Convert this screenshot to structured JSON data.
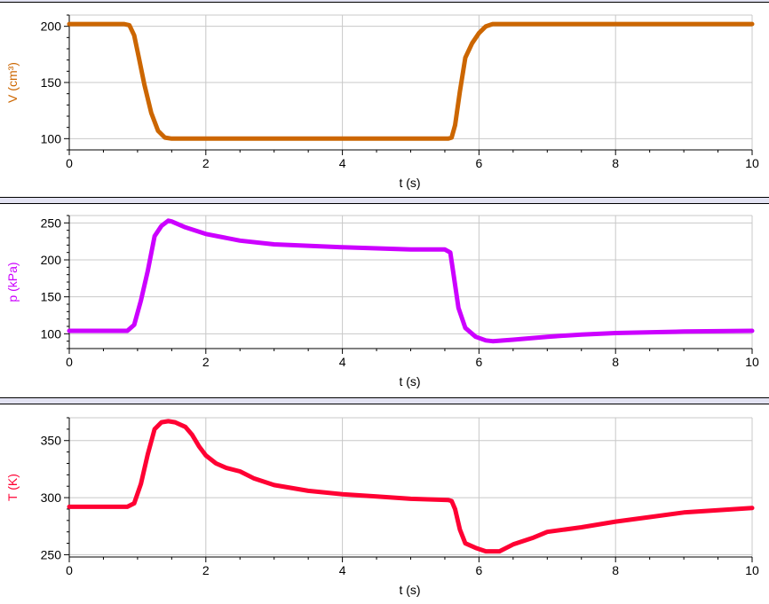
{
  "colors": {
    "grid": "#c8c8c8",
    "axis": "#000000",
    "tick_text": "#000000",
    "separator": "#e2e2f2"
  },
  "chart_data": [
    {
      "type": "line",
      "title": "",
      "xlabel": "t (s)",
      "ylabel": "V (cm³)",
      "color": "#cc6600",
      "xlim": [
        0,
        10
      ],
      "ylim": [
        90,
        210
      ],
      "xticks": [
        0,
        2,
        4,
        6,
        8,
        10
      ],
      "yticks": [
        100,
        150,
        200
      ],
      "grid": true,
      "series": [
        {
          "x": [
            0,
            0.8,
            0.88,
            0.95,
            1.02,
            1.1,
            1.2,
            1.3,
            1.4,
            1.5,
            2,
            3,
            4,
            5,
            5.55,
            5.6,
            5.65,
            5.72,
            5.8,
            5.9,
            6.0,
            6.1,
            6.2,
            6.3,
            6.5,
            7,
            8,
            9,
            10
          ],
          "y": [
            202,
            202,
            201,
            192,
            172,
            148,
            123,
            107,
            101,
            100,
            100,
            100,
            100,
            100,
            100,
            101,
            112,
            142,
            172,
            185,
            194,
            200,
            202,
            202,
            202,
            202,
            202,
            202,
            202
          ]
        }
      ]
    },
    {
      "type": "line",
      "title": "",
      "xlabel": "t (s)",
      "ylabel": "p (kPa)",
      "color": "#cc00ff",
      "xlim": [
        0,
        10
      ],
      "ylim": [
        80,
        260
      ],
      "xticks": [
        0,
        2,
        4,
        6,
        8,
        10
      ],
      "yticks": [
        100,
        150,
        200,
        250
      ],
      "grid": true,
      "series": [
        {
          "x": [
            0,
            0.85,
            0.95,
            1.05,
            1.15,
            1.25,
            1.35,
            1.45,
            1.5,
            1.7,
            2.0,
            2.5,
            3,
            4,
            5,
            5.5,
            5.58,
            5.62,
            5.7,
            5.8,
            5.95,
            6.1,
            6.2,
            6.5,
            7,
            7.5,
            8,
            9,
            10
          ],
          "y": [
            104,
            104,
            112,
            145,
            185,
            232,
            246,
            253,
            252,
            244,
            235,
            226,
            221,
            217,
            214,
            214,
            210,
            185,
            135,
            108,
            96,
            91,
            90,
            92,
            96,
            99,
            101,
            103,
            104
          ]
        }
      ]
    },
    {
      "type": "line",
      "title": "",
      "xlabel": "t (s)",
      "ylabel": "T (K)",
      "color": "#ff0033",
      "xlim": [
        0,
        10
      ],
      "ylim": [
        248,
        370
      ],
      "xticks": [
        0,
        2,
        4,
        6,
        8,
        10
      ],
      "yticks": [
        250,
        300,
        350
      ],
      "grid": true,
      "series": [
        {
          "x": [
            0,
            0.85,
            0.95,
            1.05,
            1.15,
            1.25,
            1.35,
            1.45,
            1.55,
            1.7,
            1.8,
            1.9,
            2.0,
            2.15,
            2.3,
            2.5,
            2.7,
            3.0,
            3.5,
            4,
            4.5,
            5,
            5.55,
            5.6,
            5.65,
            5.72,
            5.8,
            5.95,
            6.1,
            6.3,
            6.5,
            6.8,
            7,
            7.5,
            8,
            8.5,
            9,
            9.5,
            10
          ],
          "y": [
            292,
            292,
            295,
            312,
            338,
            360,
            366,
            367,
            366,
            362,
            355,
            345,
            337,
            330,
            326,
            323,
            317,
            311,
            306,
            303,
            301,
            299,
            298,
            297,
            290,
            272,
            260,
            256,
            253,
            253,
            259,
            265,
            270,
            274,
            279,
            283,
            287,
            289,
            291
          ]
        }
      ]
    }
  ]
}
